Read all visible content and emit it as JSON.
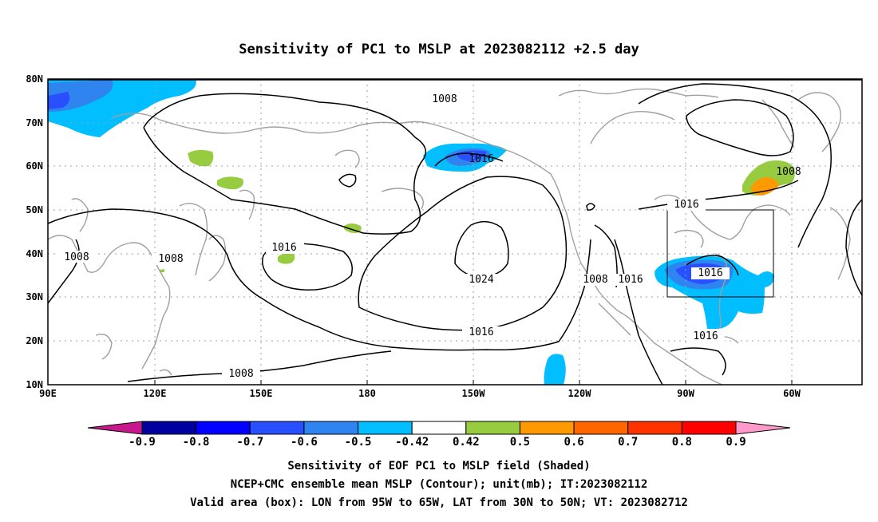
{
  "title": "Sensitivity of PC1 to MSLP at 2023082112 +2.5 day",
  "axes": {
    "lon_labels": [
      "90E",
      "120E",
      "150E",
      "180",
      "150W",
      "120W",
      "90W",
      "60W"
    ],
    "lat_labels": [
      "10N",
      "20N",
      "30N",
      "40N",
      "50N",
      "60N",
      "70N",
      "80N"
    ]
  },
  "contour_labels": [
    "1008",
    "1016",
    "1008",
    "1016",
    "1008",
    "1016",
    "1024",
    "1008",
    "1016",
    "1016",
    "1016",
    "1008",
    "1016",
    "1008"
  ],
  "colorbar": {
    "tick_labels": [
      "-0.9",
      "-0.8",
      "-0.7",
      "-0.6",
      "-0.5",
      "-0.42",
      "0.42",
      "0.5",
      "0.6",
      "0.7",
      "0.8",
      "0.9"
    ],
    "colors": [
      "#c8178c",
      "#0000a0",
      "#0000ff",
      "#2850ff",
      "#2f84f0",
      "#00beff",
      "#ffffff",
      "#98cc40",
      "#ff9900",
      "#ff6600",
      "#ff3300",
      "#ff0000",
      "#ff99cc"
    ]
  },
  "shading_colors": {
    "light_blue": "#00beff",
    "medium_blue": "#2f84f0",
    "blue": "#2850ff",
    "green": "#98cc40",
    "orange": "#ff9900",
    "contour": "#000000",
    "coast": "#a0a0a0",
    "grid": "#a0a0a0"
  },
  "footer": {
    "line1": "Sensitivity of EOF PC1 to MSLP field (Shaded)",
    "line2": "NCEP+CMC ensemble mean MSLP (Contour); unit(mb); IT:2023082112",
    "line3": "Valid area (box): LON from 95W to 65W, LAT from 30N to 50N; VT: 2023082712"
  }
}
